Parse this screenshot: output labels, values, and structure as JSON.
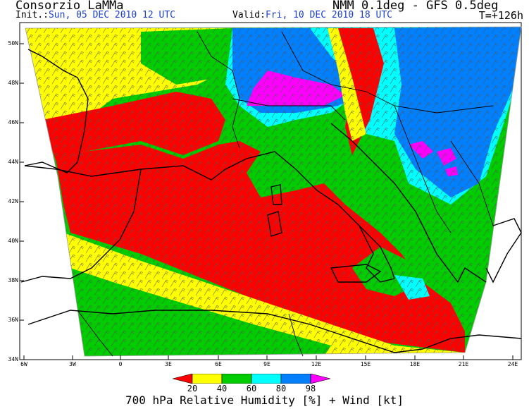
{
  "header": {
    "title": "Consorzio LaMMa",
    "model": "NMM 0.1deg - GFS 0.5deg",
    "init_label": "Init.:",
    "init_value": "Sun, 05 DEC 2010   12 UTC",
    "valid_label": "Valid:",
    "valid_value": "Fri, 10 DEC 2010   18 UTC",
    "forecast_step": "T=+126h"
  },
  "axes": {
    "lat_labels": [
      "50N",
      "48N",
      "46N",
      "44N",
      "42N",
      "40N",
      "38N",
      "36N",
      "34N"
    ],
    "lon_labels": [
      "6W",
      "3W",
      "0",
      "3E",
      "6E",
      "9E",
      "12E",
      "15E",
      "18E",
      "21E",
      "24E"
    ]
  },
  "colorbar": {
    "colors": [
      "#ff0000",
      "#ffff00",
      "#00cc00",
      "#00ffff",
      "#0080ff",
      "#ff00ff"
    ],
    "tick_labels": [
      "20",
      "40",
      "60",
      "80",
      "98"
    ]
  },
  "footer": "700 hPa Relative Humidity [%] + Wind [kt]"
}
